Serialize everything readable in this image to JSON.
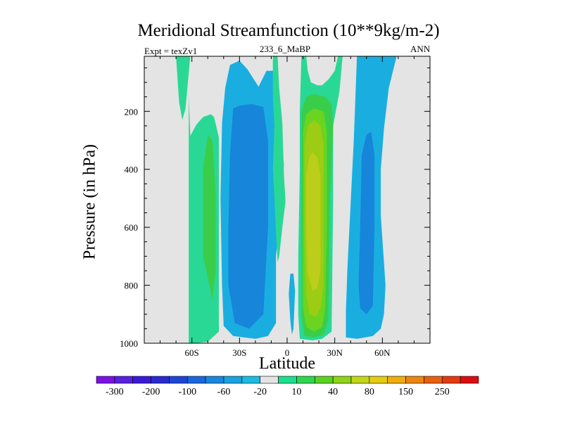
{
  "chart_data": {
    "type": "contour",
    "title": "Meridional Streamfunction (10**9kg/m-2)",
    "experiment_label": "Expt = texZv1",
    "case_label": "233_6_MaBP",
    "season_label": "ANN",
    "xlabel": "Latitude",
    "ylabel": "Pressure (in hPa)",
    "xlim": [
      -90,
      90
    ],
    "ylim": [
      1000,
      10
    ],
    "x_ticks": [
      {
        "value": -60,
        "label": "60S"
      },
      {
        "value": -30,
        "label": "30S"
      },
      {
        "value": 0,
        "label": "0"
      },
      {
        "value": 30,
        "label": "30N"
      },
      {
        "value": 60,
        "label": "60N"
      }
    ],
    "y_ticks": [
      {
        "value": 200,
        "label": "200"
      },
      {
        "value": 400,
        "label": "400"
      },
      {
        "value": 600,
        "label": "600"
      },
      {
        "value": 800,
        "label": "800"
      },
      {
        "value": 1000,
        "label": "1000"
      }
    ],
    "colorbar": {
      "colors": [
        "#7a10e6",
        "#5820e0",
        "#3a1ad8",
        "#2a2ad2",
        "#1e46d6",
        "#1a66dc",
        "#1688de",
        "#18a2e0",
        "#1abce2",
        "#e4e4e4",
        "#1ae08e",
        "#2ed650",
        "#5ad220",
        "#8ed414",
        "#c2d618",
        "#e4cc10",
        "#eeae0e",
        "#ec860e",
        "#e8600e",
        "#e43a10",
        "#dc0c10"
      ],
      "labels": [
        "-300",
        "-200",
        "-100",
        "-60",
        "-20",
        "10",
        "40",
        "80",
        "150",
        "250"
      ]
    },
    "regions": [
      {
        "name": "southern-high-lat-positive-cell",
        "color": "#2ad895",
        "points": [
          [
            -62,
            145
          ],
          [
            -62,
            1000
          ],
          [
            -58,
            1000
          ],
          [
            -50,
            995
          ],
          [
            -43,
            960
          ],
          [
            -43,
            290
          ],
          [
            -46,
            220
          ],
          [
            -48,
            210
          ],
          [
            -53,
            220
          ],
          [
            -57,
            245
          ],
          [
            -61,
            285
          ]
        ]
      },
      {
        "name": "southern-high-lat-positive-core",
        "color": "#3acd4a",
        "points": [
          [
            -53,
            400
          ],
          [
            -53,
            700
          ],
          [
            -49,
            800
          ],
          [
            -47,
            850
          ],
          [
            -45,
            750
          ],
          [
            -45,
            480
          ],
          [
            -47,
            300
          ],
          [
            -50,
            280
          ]
        ]
      },
      {
        "name": "stratosphere-positive-streak",
        "color": "#2ad895",
        "points": [
          [
            -70,
            10
          ],
          [
            -68,
            170
          ],
          [
            -66,
            230
          ],
          [
            -64,
            190
          ],
          [
            -61,
            10
          ]
        ]
      },
      {
        "name": "southern-hadley-negative",
        "color": "#1aaee0",
        "points": [
          [
            -36,
            40
          ],
          [
            -39,
            120
          ],
          [
            -41,
            240
          ],
          [
            -42,
            500
          ],
          [
            -41,
            800
          ],
          [
            -40,
            940
          ],
          [
            -34,
            975
          ],
          [
            -20,
            985
          ],
          [
            -12,
            975
          ],
          [
            -7,
            930
          ],
          [
            -7,
            700
          ],
          [
            -5,
            580
          ],
          [
            -4,
            545
          ],
          [
            -3,
            470
          ],
          [
            -2,
            380
          ],
          [
            -4,
            320
          ],
          [
            -7,
            160
          ],
          [
            -7,
            60
          ],
          [
            -13,
            60
          ],
          [
            -18,
            115
          ],
          [
            -25,
            55
          ],
          [
            -30,
            25
          ]
        ]
      },
      {
        "name": "southern-hadley-negative-core",
        "color": "#1685da",
        "points": [
          [
            -34,
            190
          ],
          [
            -36,
            350
          ],
          [
            -37,
            600
          ],
          [
            -37,
            800
          ],
          [
            -33,
            930
          ],
          [
            -24,
            950
          ],
          [
            -15,
            900
          ],
          [
            -12,
            600
          ],
          [
            -12,
            300
          ],
          [
            -15,
            185
          ],
          [
            -22,
            175
          ],
          [
            -30,
            180
          ]
        ]
      },
      {
        "name": "equatorial-thin-positive",
        "color": "#2ad895",
        "points": [
          [
            -6,
            10
          ],
          [
            -5,
            120
          ],
          [
            -3,
            240
          ],
          [
            -2,
            420
          ],
          [
            -1,
            510
          ],
          [
            -3,
            600
          ],
          [
            -5,
            700
          ],
          [
            -6,
            720
          ],
          [
            -7,
            620
          ],
          [
            -8,
            500
          ],
          [
            -9,
            400
          ],
          [
            -8,
            250
          ],
          [
            -9,
            150
          ],
          [
            -9,
            10
          ]
        ]
      },
      {
        "name": "equatorial-small-negative",
        "color": "#1aaee0",
        "points": [
          [
            1,
            830
          ],
          [
            2,
            920
          ],
          [
            3,
            970
          ],
          [
            4,
            950
          ],
          [
            5,
            820
          ],
          [
            4,
            760
          ],
          [
            2,
            760
          ]
        ]
      },
      {
        "name": "northern-hadley-positive",
        "color": "#2ad895",
        "points": [
          [
            9,
            10
          ],
          [
            8,
            200
          ],
          [
            8,
            400
          ],
          [
            7,
            700
          ],
          [
            7,
            900
          ],
          [
            8,
            985
          ],
          [
            16,
            990
          ],
          [
            22,
            985
          ],
          [
            28,
            960
          ],
          [
            29,
            500
          ],
          [
            29,
            250
          ],
          [
            33,
            130
          ],
          [
            35,
            10
          ],
          [
            32,
            10
          ],
          [
            30,
            60
          ],
          [
            26,
            90
          ],
          [
            22,
            110
          ],
          [
            19,
            110
          ],
          [
            15,
            100
          ],
          [
            13,
            60
          ],
          [
            12,
            10
          ]
        ]
      },
      {
        "name": "northern-hadley-level-40",
        "color": "#3acd4a",
        "points": [
          [
            9,
            200
          ],
          [
            9,
            500
          ],
          [
            9,
            900
          ],
          [
            11,
            975
          ],
          [
            17,
            980
          ],
          [
            23,
            970
          ],
          [
            26,
            920
          ],
          [
            27,
            500
          ],
          [
            29,
            250
          ],
          [
            28,
            175
          ],
          [
            24,
            150
          ],
          [
            17,
            140
          ],
          [
            12,
            150
          ]
        ]
      },
      {
        "name": "northern-hadley-level-60",
        "color": "#6ad420",
        "points": [
          [
            10,
            270
          ],
          [
            10,
            650
          ],
          [
            10,
            880
          ],
          [
            12,
            945
          ],
          [
            17,
            960
          ],
          [
            22,
            945
          ],
          [
            24,
            880
          ],
          [
            25,
            600
          ],
          [
            25,
            270
          ],
          [
            23,
            200
          ],
          [
            17,
            190
          ],
          [
            12,
            210
          ]
        ]
      },
      {
        "name": "northern-hadley-level-80",
        "color": "#9ccc14",
        "points": [
          [
            11,
            320
          ],
          [
            11,
            650
          ],
          [
            12,
            830
          ],
          [
            14,
            900
          ],
          [
            18,
            910
          ],
          [
            21,
            880
          ],
          [
            23,
            800
          ],
          [
            23,
            320
          ],
          [
            21,
            250
          ],
          [
            17,
            230
          ],
          [
            13,
            250
          ]
        ]
      },
      {
        "name": "northern-hadley-core",
        "color": "#bcce1a",
        "points": [
          [
            12,
            420
          ],
          [
            12,
            600
          ],
          [
            13,
            760
          ],
          [
            16,
            820
          ],
          [
            19,
            810
          ],
          [
            21,
            750
          ],
          [
            21,
            420
          ],
          [
            19,
            360
          ],
          [
            16,
            340
          ],
          [
            14,
            360
          ]
        ]
      },
      {
        "name": "northern-ferrel-negative",
        "color": "#1aaee0",
        "points": [
          [
            44,
            10
          ],
          [
            42,
            300
          ],
          [
            40,
            520
          ],
          [
            38,
            740
          ],
          [
            37,
            890
          ],
          [
            37,
            980
          ],
          [
            44,
            985
          ],
          [
            54,
            975
          ],
          [
            59,
            950
          ],
          [
            61,
            900
          ],
          [
            62,
            800
          ],
          [
            59,
            560
          ],
          [
            59,
            400
          ],
          [
            61,
            260
          ],
          [
            64,
            120
          ],
          [
            69,
            10
          ]
        ]
      },
      {
        "name": "northern-ferrel-negative-core",
        "color": "#1685da",
        "points": [
          [
            47,
            350
          ],
          [
            46,
            600
          ],
          [
            45,
            800
          ],
          [
            46,
            880
          ],
          [
            50,
            900
          ],
          [
            54,
            870
          ],
          [
            55,
            600
          ],
          [
            55,
            350
          ],
          [
            53,
            270
          ],
          [
            50,
            280
          ]
        ]
      }
    ]
  }
}
